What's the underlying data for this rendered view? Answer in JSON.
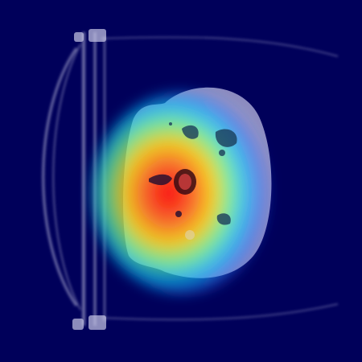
{
  "image": {
    "subject": "ct-slice-with-heatmap-overlay",
    "background_color": "#000056",
    "heatmap_colors": [
      "#0000ff",
      "#00c8ff",
      "#00ff96",
      "#ffff00",
      "#ff8000",
      "#ff0000"
    ],
    "tissue_color": "#d8d8e8"
  }
}
